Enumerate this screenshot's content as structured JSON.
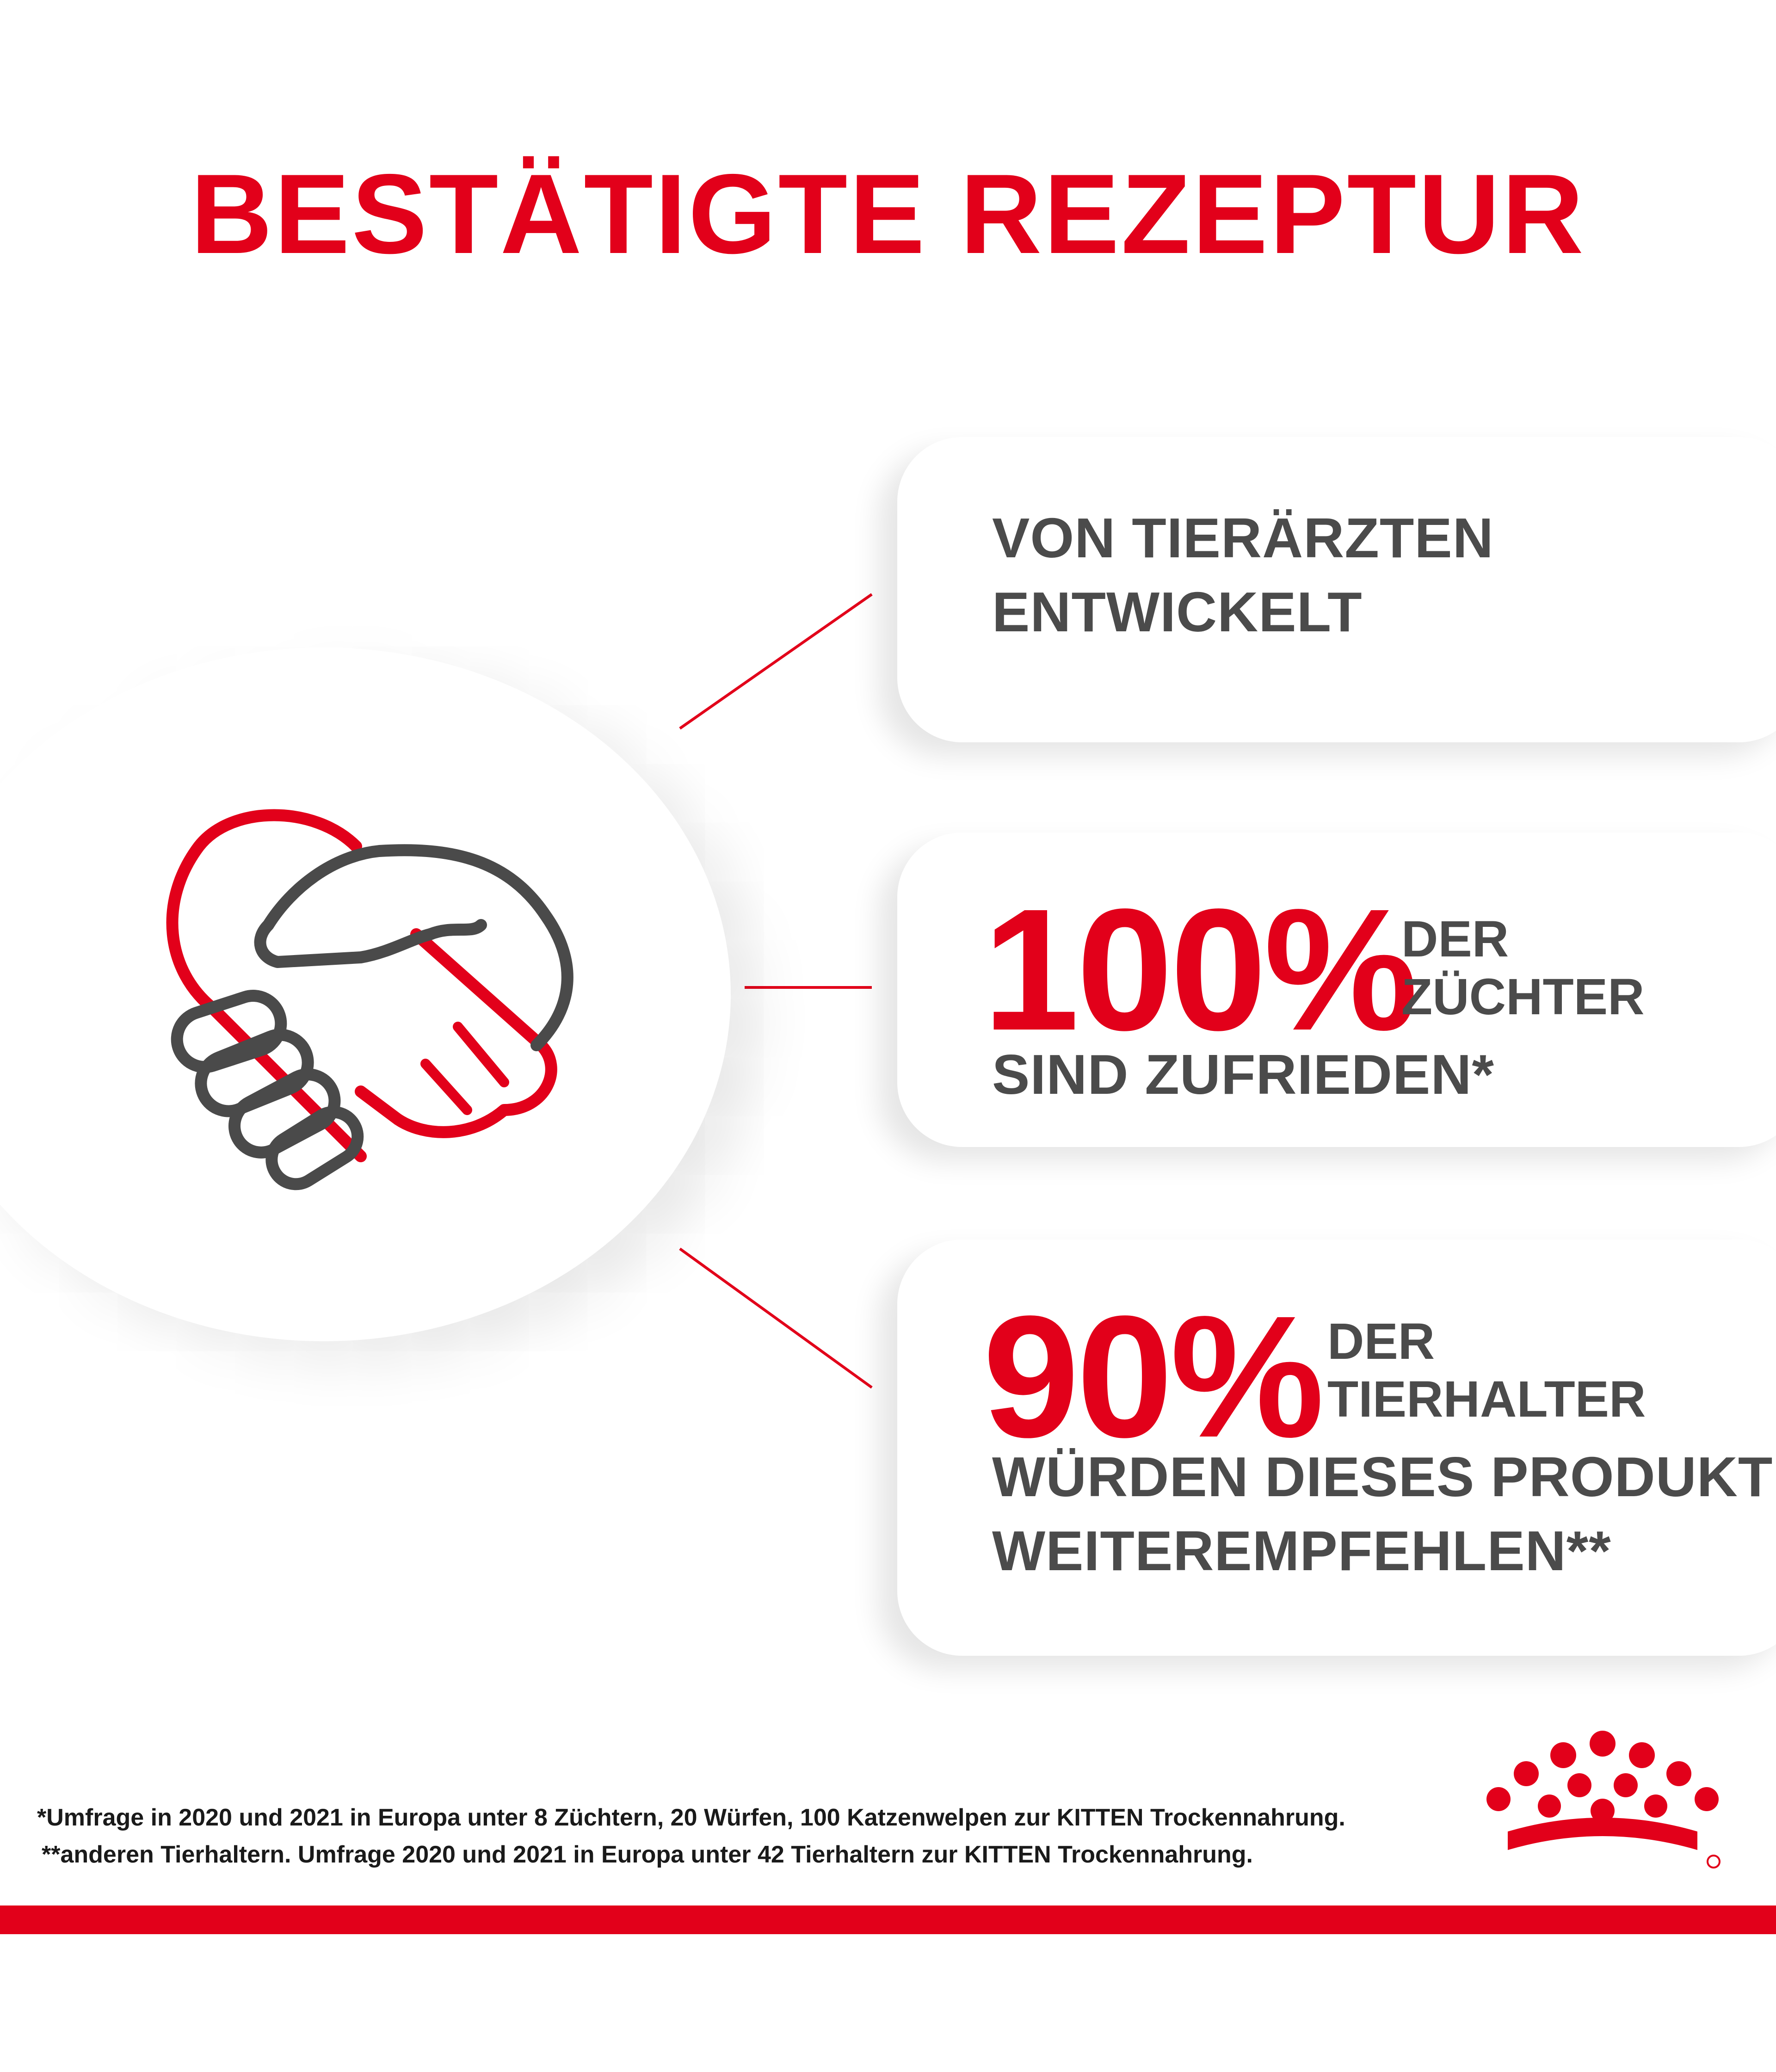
{
  "title": "BESTÄTIGTE REZEPTUR",
  "cards": [
    {
      "line1": "VON TIERÄRZTEN",
      "line2": "ENTWICKELT"
    },
    {
      "percent": "100%",
      "small1": "DER",
      "small2": "ZÜCHTER",
      "line1": "SIND ZUFRIEDEN*"
    },
    {
      "percent": "90%",
      "small1": "DER",
      "small2": "TIERHALTER",
      "line1": "WÜRDEN DIESES PRODUKT",
      "line2": "WEITEREMPFEHLEN**"
    }
  ],
  "footnotes": [
    "*Umfrage in 2020 und 2021 in Europa unter 8 Züchtern, 20 Würfen, 100 Katzenwelpen zur KITTEN Trockennahrung.",
    "**anderen Tierhaltern. Umfrage 2020 und 2021 in Europa unter 42 Tierhaltern zur KITTEN Trockennahrung."
  ],
  "colors": {
    "brand_red": "#e2001a",
    "text_gray": "#4b4b4b"
  },
  "icons": {
    "main": "heart-handshake-icon",
    "logo": "royal-canin-crown-logo"
  }
}
